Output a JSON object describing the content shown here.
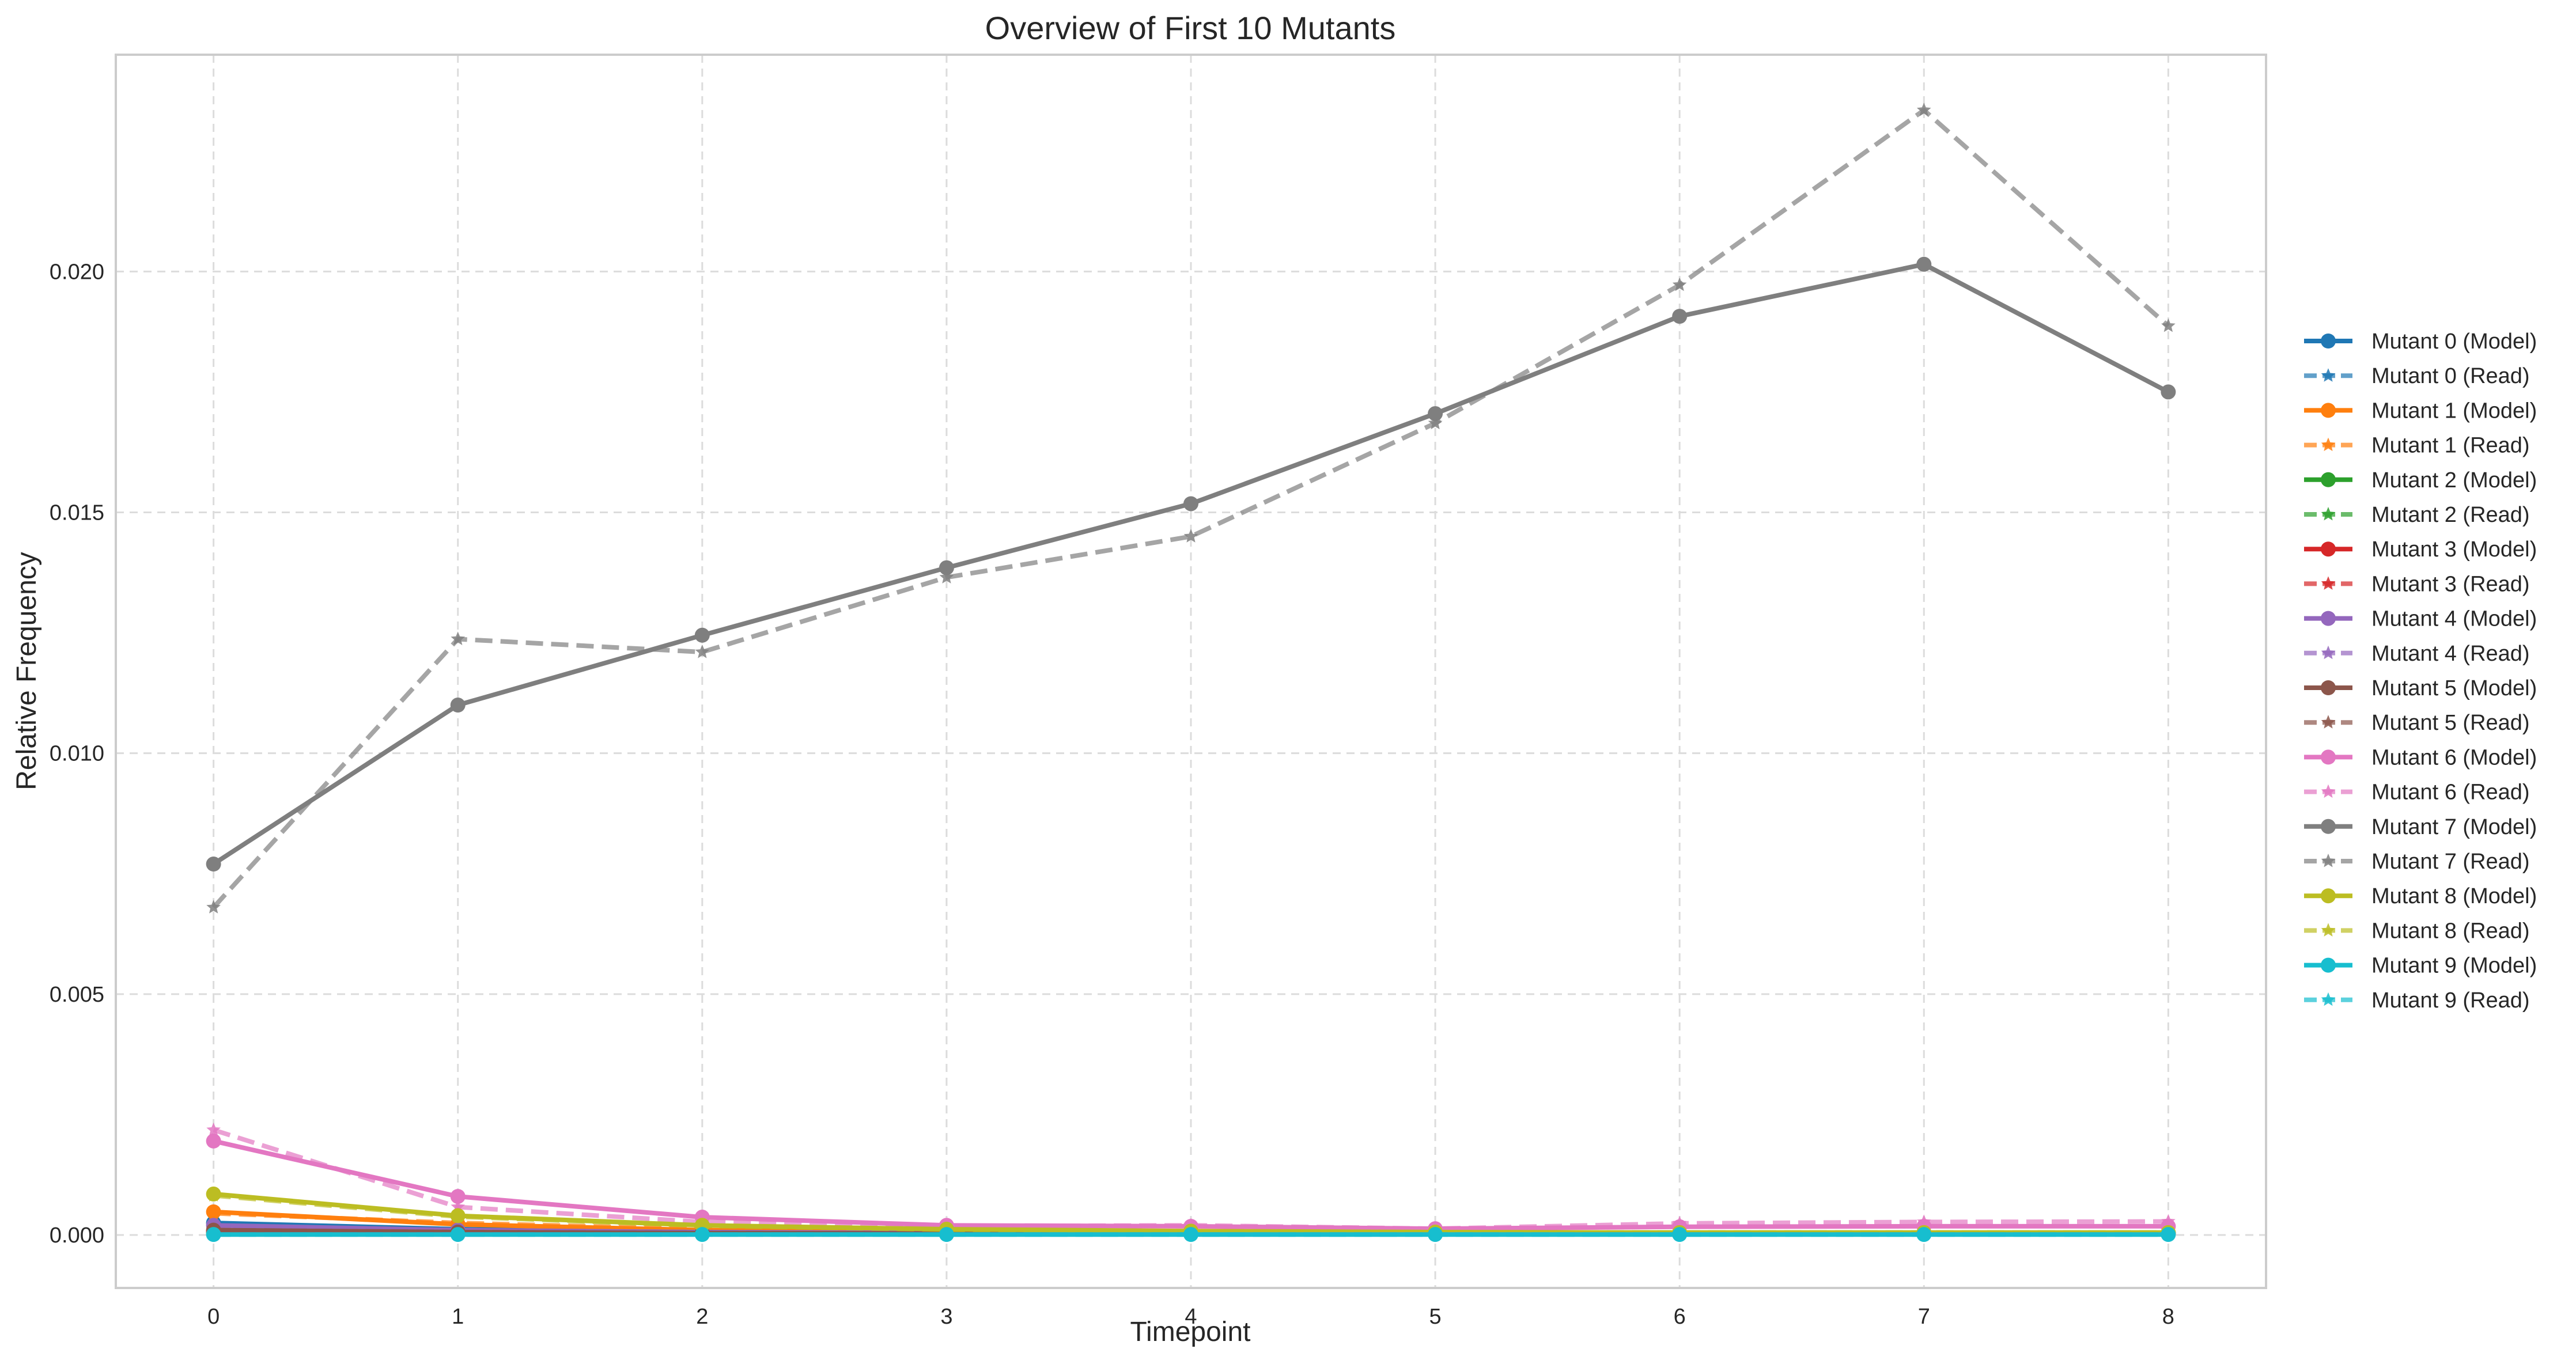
{
  "chart_data": {
    "type": "line",
    "title": "Overview of First 10 Mutants",
    "xlabel": "Timepoint",
    "ylabel": "Relative Frequency",
    "x": [
      0,
      1,
      2,
      3,
      4,
      5,
      6,
      7,
      8
    ],
    "x_ticks": [
      "0",
      "1",
      "2",
      "3",
      "4",
      "5",
      "6",
      "7",
      "8"
    ],
    "y_ticks": [
      "0.000",
      "0.005",
      "0.010",
      "0.015",
      "0.020"
    ],
    "y_tick_values": [
      0,
      0.005,
      0.01,
      0.015,
      0.02
    ],
    "xlim": [
      -0.4,
      8.4
    ],
    "ylim": [
      -0.0011,
      0.0245
    ],
    "grid": true,
    "legend_position": "right",
    "series": [
      {
        "name": "Mutant 0 (Model)",
        "color": "#1f77b4",
        "marker": "circle",
        "linestyle": "solid",
        "values": [
          0.00025,
          0.00012,
          8e-05,
          5e-05,
          4e-05,
          3e-05,
          3e-05,
          3e-05,
          3e-05
        ]
      },
      {
        "name": "Mutant 0 (Read)",
        "color": "#1f77b4",
        "marker": "star",
        "linestyle": "dashed",
        "values": [
          0.00022,
          0.0001,
          7e-05,
          5e-05,
          4e-05,
          3e-05,
          3e-05,
          3e-05,
          3e-05
        ]
      },
      {
        "name": "Mutant 1 (Model)",
        "color": "#ff7f0e",
        "marker": "circle",
        "linestyle": "solid",
        "values": [
          0.00048,
          0.00022,
          0.0001,
          6e-05,
          4e-05,
          3e-05,
          3e-05,
          2e-05,
          2e-05
        ]
      },
      {
        "name": "Mutant 1 (Read)",
        "color": "#ff7f0e",
        "marker": "star",
        "linestyle": "dashed",
        "values": [
          0.00045,
          0.00025,
          0.00012,
          7e-05,
          5e-05,
          3e-05,
          3e-05,
          2e-05,
          2e-05
        ]
      },
      {
        "name": "Mutant 2 (Model)",
        "color": "#2ca02c",
        "marker": "circle",
        "linestyle": "solid",
        "values": [
          5e-05,
          4e-05,
          3e-05,
          3e-05,
          2e-05,
          2e-05,
          2e-05,
          2e-05,
          2e-05
        ]
      },
      {
        "name": "Mutant 2 (Read)",
        "color": "#2ca02c",
        "marker": "star",
        "linestyle": "dashed",
        "values": [
          5e-05,
          4e-05,
          3e-05,
          3e-05,
          2e-05,
          2e-05,
          2e-05,
          2e-05,
          2e-05
        ]
      },
      {
        "name": "Mutant 3 (Model)",
        "color": "#d62728",
        "marker": "circle",
        "linestyle": "solid",
        "values": [
          8e-05,
          6e-05,
          5e-05,
          4e-05,
          4e-05,
          4e-05,
          4e-05,
          4e-05,
          4e-05
        ]
      },
      {
        "name": "Mutant 3 (Read)",
        "color": "#d62728",
        "marker": "star",
        "linestyle": "dashed",
        "values": [
          8e-05,
          6e-05,
          5e-05,
          4e-05,
          4e-05,
          4e-05,
          4e-05,
          4e-05,
          4e-05
        ]
      },
      {
        "name": "Mutant 4 (Model)",
        "color": "#9467bd",
        "marker": "circle",
        "linestyle": "solid",
        "values": [
          0.0002,
          0.0001,
          6e-05,
          4e-05,
          3e-05,
          3e-05,
          3e-05,
          3e-05,
          3e-05
        ]
      },
      {
        "name": "Mutant 4 (Read)",
        "color": "#9467bd",
        "marker": "star",
        "linestyle": "dashed",
        "values": [
          0.00018,
          0.0001,
          6e-05,
          4e-05,
          3e-05,
          3e-05,
          3e-05,
          3e-05,
          3e-05
        ]
      },
      {
        "name": "Mutant 5 (Model)",
        "color": "#8c564b",
        "marker": "circle",
        "linestyle": "solid",
        "values": [
          0.0001,
          6e-05,
          4e-05,
          3e-05,
          2e-05,
          2e-05,
          2e-05,
          2e-05,
          2e-05
        ]
      },
      {
        "name": "Mutant 5 (Read)",
        "color": "#8c564b",
        "marker": "star",
        "linestyle": "dashed",
        "values": [
          0.0001,
          6e-05,
          4e-05,
          3e-05,
          2e-05,
          2e-05,
          2e-05,
          2e-05,
          2e-05
        ]
      },
      {
        "name": "Mutant 6 (Model)",
        "color": "#e377c2",
        "marker": "circle",
        "linestyle": "solid",
        "values": [
          0.00195,
          0.0008,
          0.00037,
          0.0002,
          0.00018,
          0.00013,
          0.00017,
          0.00018,
          0.00018
        ]
      },
      {
        "name": "Mutant 6 (Read)",
        "color": "#e377c2",
        "marker": "star",
        "linestyle": "dashed",
        "values": [
          0.00218,
          0.00058,
          0.00027,
          0.00018,
          0.0002,
          0.00013,
          0.00024,
          0.00027,
          0.00028
        ]
      },
      {
        "name": "Mutant 7 (Model)",
        "color": "#7f7f7f",
        "marker": "circle",
        "linestyle": "solid",
        "values": [
          0.0077,
          0.011,
          0.01245,
          0.01385,
          0.01518,
          0.01705,
          0.01907,
          0.02015,
          0.0175
        ]
      },
      {
        "name": "Mutant 7 (Read)",
        "color": "#7f7f7f",
        "marker": "star",
        "linestyle": "dashed",
        "values": [
          0.0068,
          0.01237,
          0.0121,
          0.01365,
          0.0145,
          0.01685,
          0.01972,
          0.02335,
          0.01887
        ]
      },
      {
        "name": "Mutant 8 (Model)",
        "color": "#bcbd22",
        "marker": "circle",
        "linestyle": "solid",
        "values": [
          0.00085,
          0.0004,
          0.0002,
          0.00012,
          8e-05,
          6e-05,
          5e-05,
          5e-05,
          5e-05
        ]
      },
      {
        "name": "Mutant 8 (Read)",
        "color": "#bcbd22",
        "marker": "star",
        "linestyle": "dashed",
        "values": [
          0.00082,
          0.00038,
          0.00019,
          0.00011,
          8e-05,
          6e-05,
          5e-05,
          5e-05,
          5e-05
        ]
      },
      {
        "name": "Mutant 9 (Model)",
        "color": "#17becf",
        "marker": "circle",
        "linestyle": "solid",
        "values": [
          1e-05,
          1e-05,
          1e-05,
          1e-05,
          1e-05,
          1e-05,
          1e-05,
          1e-05,
          1e-05
        ]
      },
      {
        "name": "Mutant 9 (Read)",
        "color": "#17becf",
        "marker": "star",
        "linestyle": "dashed",
        "values": [
          1e-05,
          1e-05,
          1e-05,
          1e-05,
          1e-05,
          1e-05,
          1e-05,
          1e-05,
          1e-05
        ]
      }
    ]
  }
}
